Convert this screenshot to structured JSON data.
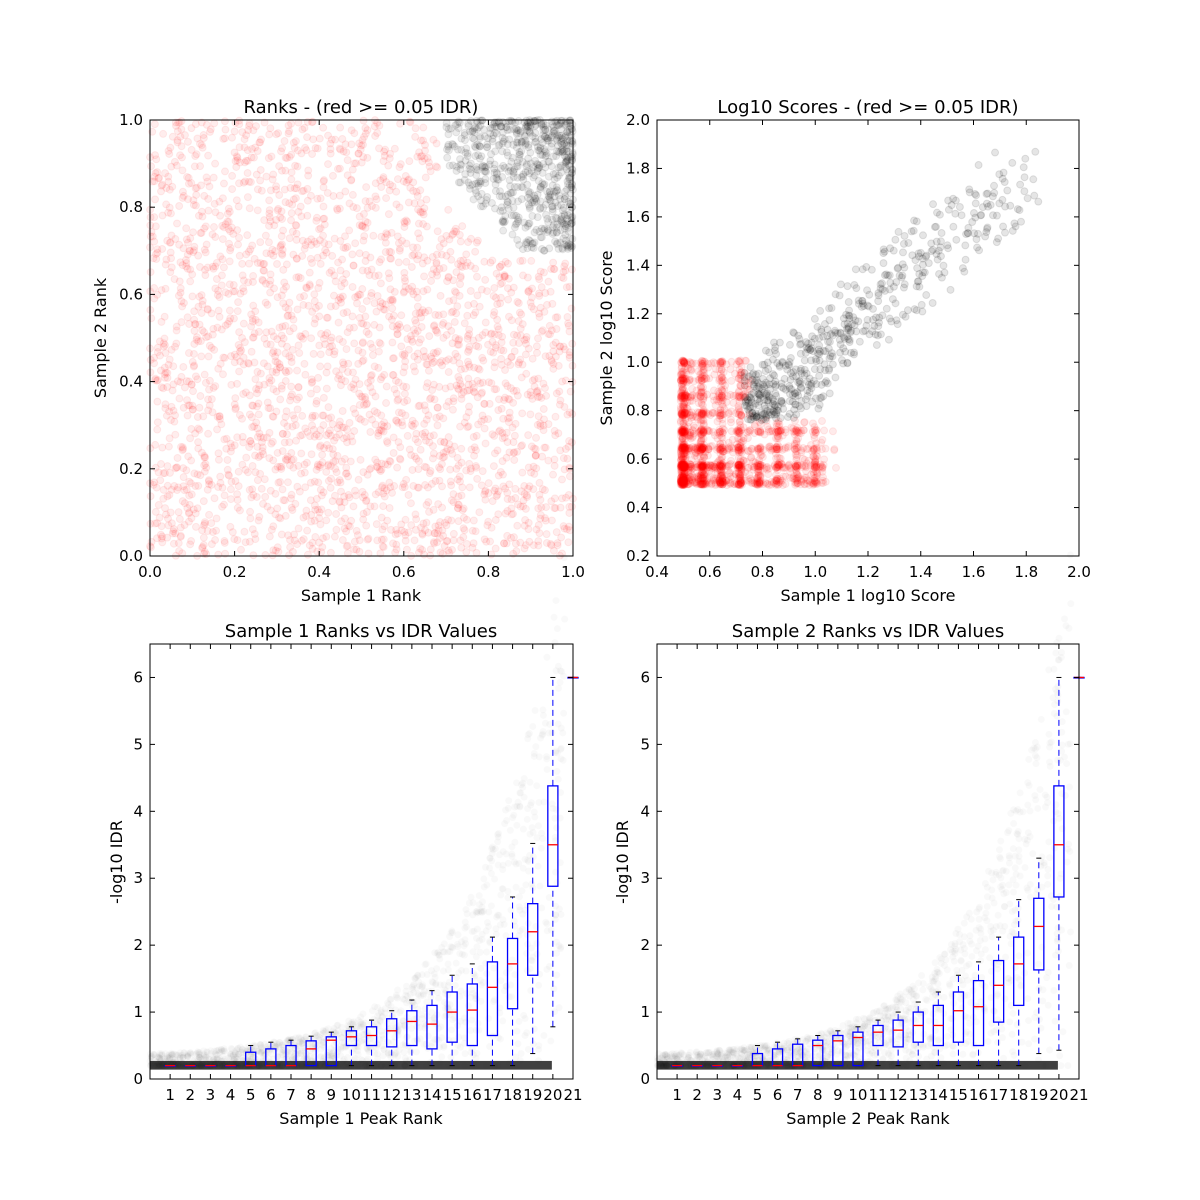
{
  "colors": {
    "below_threshold": "#ff0000",
    "above_threshold": "#000000",
    "box": "#0000ff",
    "median": "#ff0000",
    "background": "#ffffff"
  },
  "chart_data": [
    {
      "type": "scatter",
      "title": "Ranks - (red >= 0.05 IDR)",
      "xlabel": "Sample 1 Rank",
      "ylabel": "Sample 2 Rank",
      "xlim": [
        0,
        1
      ],
      "ylim": [
        0,
        1
      ],
      "xticks": [
        "0.0",
        "0.2",
        "0.4",
        "0.6",
        "0.8",
        "1.0"
      ],
      "yticks": [
        "0.0",
        "0.2",
        "0.4",
        "0.6",
        "0.8",
        "1.0"
      ],
      "grid": false,
      "series": [
        {
          "color": "red",
          "alpha": 0.07,
          "count": 2600,
          "x_range": [
            0,
            1
          ],
          "y_range": [
            0,
            1
          ]
        },
        {
          "color": "black",
          "alpha": 0.08,
          "count": 650,
          "x_range": [
            0.7,
            1.0
          ],
          "y_range": [
            0.7,
            1.0
          ]
        }
      ]
    },
    {
      "type": "scatter",
      "title": "Log10 Scores - (red >= 0.05 IDR)",
      "xlabel": "Sample 1 log10 Score",
      "ylabel": "Sample 2 log10 Score",
      "xlim": [
        0.4,
        2.0
      ],
      "ylim": [
        0.2,
        2.0
      ],
      "xticks": [
        "0.4",
        "0.6",
        "0.8",
        "1.0",
        "1.2",
        "1.4",
        "1.6",
        "1.8",
        "2.0"
      ],
      "yticks": [
        "0.2",
        "0.4",
        "0.6",
        "0.8",
        "1.0",
        "1.2",
        "1.4",
        "1.6",
        "1.8",
        "2.0"
      ],
      "grid": false,
      "series": [
        {
          "color": "red",
          "alpha": 0.08,
          "count": 1800,
          "x_range": [
            0.48,
            1.15
          ],
          "y_range": [
            0.5,
            1.05
          ]
        },
        {
          "color": "black",
          "alpha": 0.1,
          "count": 550,
          "x_range": [
            0.72,
            1.85
          ],
          "y_range": [
            0.75,
            1.9
          ]
        }
      ]
    },
    {
      "type": "box",
      "title": "Sample 1 Ranks vs IDR Values",
      "xlabel": "Sample 1 Peak Rank",
      "ylabel": "-log10 IDR",
      "categories": [
        "1",
        "2",
        "3",
        "4",
        "5",
        "6",
        "7",
        "8",
        "9",
        "10",
        "11",
        "12",
        "13",
        "14",
        "15",
        "16",
        "17",
        "18",
        "19",
        "20",
        "21"
      ],
      "ylim": [
        0,
        6.5
      ],
      "yticks": [
        "0",
        "1",
        "2",
        "3",
        "4",
        "5",
        "6"
      ],
      "grid": false,
      "boxes": [
        {
          "whislo": 0.2,
          "q1": 0.2,
          "med": 0.2,
          "q3": 0.2,
          "whishi": 0.2
        },
        {
          "whislo": 0.2,
          "q1": 0.2,
          "med": 0.2,
          "q3": 0.2,
          "whishi": 0.2
        },
        {
          "whislo": 0.2,
          "q1": 0.2,
          "med": 0.2,
          "q3": 0.2,
          "whishi": 0.2
        },
        {
          "whislo": 0.2,
          "q1": 0.2,
          "med": 0.2,
          "q3": 0.2,
          "whishi": 0.2
        },
        {
          "whislo": 0.2,
          "q1": 0.2,
          "med": 0.2,
          "q3": 0.4,
          "whishi": 0.5
        },
        {
          "whislo": 0.2,
          "q1": 0.2,
          "med": 0.2,
          "q3": 0.45,
          "whishi": 0.55
        },
        {
          "whislo": 0.2,
          "q1": 0.2,
          "med": 0.2,
          "q3": 0.5,
          "whishi": 0.58
        },
        {
          "whislo": 0.2,
          "q1": 0.2,
          "med": 0.45,
          "q3": 0.57,
          "whishi": 0.64
        },
        {
          "whislo": 0.2,
          "q1": 0.2,
          "med": 0.58,
          "q3": 0.63,
          "whishi": 0.7
        },
        {
          "whislo": 0.2,
          "q1": 0.5,
          "med": 0.63,
          "q3": 0.72,
          "whishi": 0.78
        },
        {
          "whislo": 0.2,
          "q1": 0.5,
          "med": 0.65,
          "q3": 0.78,
          "whishi": 0.88
        },
        {
          "whislo": 0.2,
          "q1": 0.48,
          "med": 0.72,
          "q3": 0.9,
          "whishi": 1.02
        },
        {
          "whislo": 0.2,
          "q1": 0.5,
          "med": 0.86,
          "q3": 1.02,
          "whishi": 1.18
        },
        {
          "whislo": 0.2,
          "q1": 0.45,
          "med": 0.82,
          "q3": 1.1,
          "whishi": 1.32
        },
        {
          "whislo": 0.2,
          "q1": 0.55,
          "med": 1.0,
          "q3": 1.3,
          "whishi": 1.55
        },
        {
          "whislo": 0.2,
          "q1": 0.5,
          "med": 1.03,
          "q3": 1.42,
          "whishi": 1.72
        },
        {
          "whislo": 0.2,
          "q1": 0.65,
          "med": 1.37,
          "q3": 1.75,
          "whishi": 2.12
        },
        {
          "whislo": 0.2,
          "q1": 1.05,
          "med": 1.72,
          "q3": 2.1,
          "whishi": 2.72
        },
        {
          "whislo": 0.38,
          "q1": 1.55,
          "med": 2.2,
          "q3": 2.62,
          "whishi": 3.52
        },
        {
          "whislo": 0.78,
          "q1": 2.88,
          "med": 3.5,
          "q3": 4.38,
          "whishi": 6.0
        },
        {
          "whislo": 6.0,
          "q1": 6.0,
          "med": 6.0,
          "q3": 6.0,
          "whishi": 6.0
        }
      ]
    },
    {
      "type": "box",
      "title": "Sample 2 Ranks vs IDR Values",
      "xlabel": "Sample 2 Peak Rank",
      "ylabel": "-log10 IDR",
      "categories": [
        "1",
        "2",
        "3",
        "4",
        "5",
        "6",
        "7",
        "8",
        "9",
        "10",
        "11",
        "12",
        "13",
        "14",
        "15",
        "16",
        "17",
        "18",
        "19",
        "20",
        "21"
      ],
      "ylim": [
        0,
        6.5
      ],
      "yticks": [
        "0",
        "1",
        "2",
        "3",
        "4",
        "5",
        "6"
      ],
      "grid": false,
      "boxes": [
        {
          "whislo": 0.2,
          "q1": 0.2,
          "med": 0.2,
          "q3": 0.2,
          "whishi": 0.2
        },
        {
          "whislo": 0.2,
          "q1": 0.2,
          "med": 0.2,
          "q3": 0.2,
          "whishi": 0.2
        },
        {
          "whislo": 0.2,
          "q1": 0.2,
          "med": 0.2,
          "q3": 0.2,
          "whishi": 0.2
        },
        {
          "whislo": 0.2,
          "q1": 0.2,
          "med": 0.2,
          "q3": 0.2,
          "whishi": 0.2
        },
        {
          "whislo": 0.2,
          "q1": 0.2,
          "med": 0.2,
          "q3": 0.38,
          "whishi": 0.5
        },
        {
          "whislo": 0.2,
          "q1": 0.2,
          "med": 0.2,
          "q3": 0.45,
          "whishi": 0.55
        },
        {
          "whislo": 0.2,
          "q1": 0.2,
          "med": 0.2,
          "q3": 0.52,
          "whishi": 0.6
        },
        {
          "whislo": 0.2,
          "q1": 0.2,
          "med": 0.5,
          "q3": 0.58,
          "whishi": 0.65
        },
        {
          "whislo": 0.2,
          "q1": 0.2,
          "med": 0.57,
          "q3": 0.65,
          "whishi": 0.72
        },
        {
          "whislo": 0.2,
          "q1": 0.2,
          "med": 0.62,
          "q3": 0.7,
          "whishi": 0.78
        },
        {
          "whislo": 0.2,
          "q1": 0.5,
          "med": 0.7,
          "q3": 0.8,
          "whishi": 0.88
        },
        {
          "whislo": 0.2,
          "q1": 0.48,
          "med": 0.73,
          "q3": 0.88,
          "whishi": 1.0
        },
        {
          "whislo": 0.2,
          "q1": 0.55,
          "med": 0.8,
          "q3": 1.0,
          "whishi": 1.15
        },
        {
          "whislo": 0.2,
          "q1": 0.5,
          "med": 0.8,
          "q3": 1.1,
          "whishi": 1.3
        },
        {
          "whislo": 0.2,
          "q1": 0.55,
          "med": 1.02,
          "q3": 1.3,
          "whishi": 1.55
        },
        {
          "whislo": 0.2,
          "q1": 0.5,
          "med": 1.08,
          "q3": 1.47,
          "whishi": 1.75
        },
        {
          "whislo": 0.2,
          "q1": 0.85,
          "med": 1.4,
          "q3": 1.77,
          "whishi": 2.12
        },
        {
          "whislo": 0.2,
          "q1": 1.1,
          "med": 1.72,
          "q3": 2.12,
          "whishi": 2.68
        },
        {
          "whislo": 0.38,
          "q1": 1.63,
          "med": 2.28,
          "q3": 2.7,
          "whishi": 3.3
        },
        {
          "whislo": 0.43,
          "q1": 2.72,
          "med": 3.5,
          "q3": 4.38,
          "whishi": 6.0
        },
        {
          "whislo": 6.0,
          "q1": 6.0,
          "med": 6.0,
          "q3": 6.0,
          "whishi": 6.0
        }
      ]
    }
  ]
}
